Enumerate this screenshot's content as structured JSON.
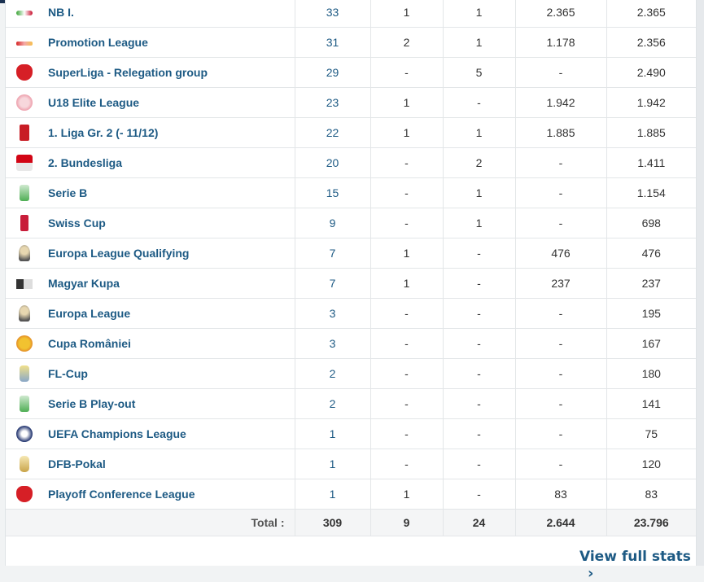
{
  "colors": {
    "link": "#1d5a84",
    "header_bar": "#1a3151"
  },
  "rows": [
    {
      "icon": "nb-i-logo-icon",
      "name": "NB I.",
      "c1": "33",
      "c2": "1",
      "c3": "1",
      "c4": "2.365",
      "c5": "2.365"
    },
    {
      "icon": "promotion-league-logo-icon",
      "name": "Promotion League",
      "c1": "31",
      "c2": "2",
      "c3": "1",
      "c4": "1.178",
      "c5": "2.356"
    },
    {
      "icon": "superliga-logo-icon",
      "name": "SuperLiga - Relegation group",
      "c1": "29",
      "c2": "-",
      "c3": "5",
      "c4": "-",
      "c5": "2.490"
    },
    {
      "icon": "u18-elite-league-logo-icon",
      "name": "U18 Elite League",
      "c1": "23",
      "c2": "1",
      "c3": "-",
      "c4": "1.942",
      "c5": "1.942"
    },
    {
      "icon": "liga-gr2-logo-icon",
      "name": "1. Liga Gr. 2 (- 11/12)",
      "c1": "22",
      "c2": "1",
      "c3": "1",
      "c4": "1.885",
      "c5": "1.885"
    },
    {
      "icon": "bundesliga2-logo-icon",
      "name": "2. Bundesliga",
      "c1": "20",
      "c2": "-",
      "c3": "2",
      "c4": "-",
      "c5": "1.411"
    },
    {
      "icon": "serie-b-logo-icon",
      "name": "Serie B",
      "c1": "15",
      "c2": "-",
      "c3": "1",
      "c4": "-",
      "c5": "1.154"
    },
    {
      "icon": "swiss-cup-logo-icon",
      "name": "Swiss Cup",
      "c1": "9",
      "c2": "-",
      "c3": "1",
      "c4": "-",
      "c5": "698"
    },
    {
      "icon": "europa-league-qualifying-logo-icon",
      "name": "Europa League Qualifying",
      "c1": "7",
      "c2": "1",
      "c3": "-",
      "c4": "476",
      "c5": "476"
    },
    {
      "icon": "magyar-kupa-logo-icon",
      "name": "Magyar Kupa",
      "c1": "7",
      "c2": "1",
      "c3": "-",
      "c4": "237",
      "c5": "237"
    },
    {
      "icon": "europa-league-logo-icon",
      "name": "Europa League",
      "c1": "3",
      "c2": "-",
      "c3": "-",
      "c4": "-",
      "c5": "195"
    },
    {
      "icon": "cupa-romaniei-logo-icon",
      "name": "Cupa României",
      "c1": "3",
      "c2": "-",
      "c3": "-",
      "c4": "-",
      "c5": "167"
    },
    {
      "icon": "fl-cup-logo-icon",
      "name": "FL-Cup",
      "c1": "2",
      "c2": "-",
      "c3": "-",
      "c4": "-",
      "c5": "180"
    },
    {
      "icon": "serie-b-playout-logo-icon",
      "name": "Serie B Play-out",
      "c1": "2",
      "c2": "-",
      "c3": "-",
      "c4": "-",
      "c5": "141"
    },
    {
      "icon": "champions-league-logo-icon",
      "name": "UEFA Champions League",
      "c1": "1",
      "c2": "-",
      "c3": "-",
      "c4": "-",
      "c5": "75"
    },
    {
      "icon": "dfb-pokal-logo-icon",
      "name": "DFB-Pokal",
      "c1": "1",
      "c2": "-",
      "c3": "-",
      "c4": "-",
      "c5": "120"
    },
    {
      "icon": "playoff-conference-league-logo-icon",
      "name": "Playoff Conference League",
      "c1": "1",
      "c2": "1",
      "c3": "-",
      "c4": "83",
      "c5": "83"
    }
  ],
  "total": {
    "label": "Total :",
    "c1": "309",
    "c2": "9",
    "c3": "24",
    "c4": "2.644",
    "c5": "23.796"
  },
  "footer": {
    "link_label": "View full stats"
  }
}
